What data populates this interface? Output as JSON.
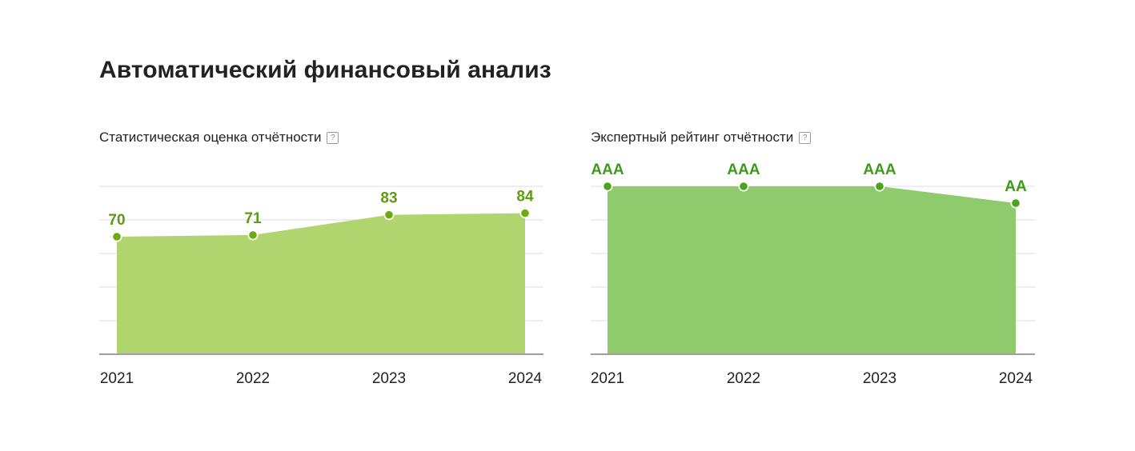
{
  "page": {
    "title": "Автоматический финансовый анализ"
  },
  "help_icon_glyph": "?",
  "chart_data": [
    {
      "type": "area",
      "title": "Статистическая оценка отчётности",
      "categories": [
        "2021",
        "2022",
        "2023",
        "2024"
      ],
      "values": [
        70,
        71,
        83,
        84
      ],
      "labels": [
        "70",
        "71",
        "83",
        "84"
      ],
      "ylim": [
        0,
        100
      ],
      "grid": true,
      "fill_color": "#b0d56e",
      "point_color": "#6faa12",
      "label_color": "#5e9a13",
      "xlabel": "",
      "ylabel": ""
    },
    {
      "type": "area",
      "title": "Экспертный рейтинг отчётности",
      "categories": [
        "2021",
        "2022",
        "2023",
        "2024"
      ],
      "values": [
        5,
        5,
        5,
        4.5
      ],
      "labels": [
        "AAA",
        "AAA",
        "AAA",
        "AA"
      ],
      "ylim": [
        0,
        5
      ],
      "grid": true,
      "fill_color": "#8fcb6c",
      "point_color": "#49a51c",
      "label_color": "#3d9a1a",
      "xlabel": "",
      "ylabel": ""
    }
  ]
}
